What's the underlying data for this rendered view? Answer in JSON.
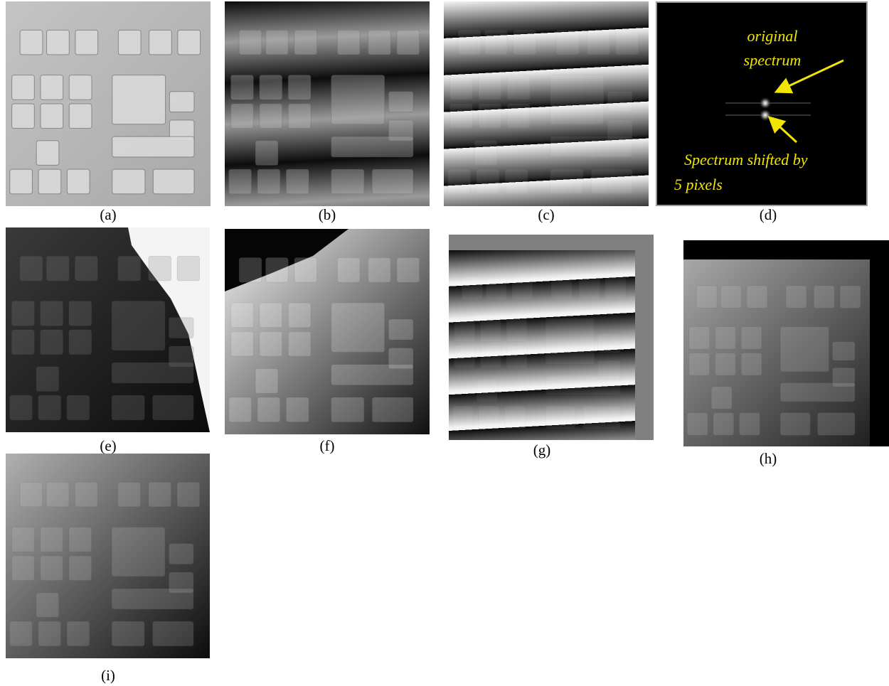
{
  "figure": {
    "panels": [
      {
        "label": "(a)"
      },
      {
        "label": "(b)"
      },
      {
        "label": "(c)"
      },
      {
        "label": "(d)"
      },
      {
        "label": "(e)"
      },
      {
        "label": "(f)"
      },
      {
        "label": "(g)"
      },
      {
        "label": "(h)"
      },
      {
        "label": "(i)"
      }
    ],
    "spectrum_annotations": {
      "original": [
        "original",
        "spectrum"
      ],
      "shifted": [
        "Spectrum shifted by",
        "5 pixels"
      ]
    }
  }
}
